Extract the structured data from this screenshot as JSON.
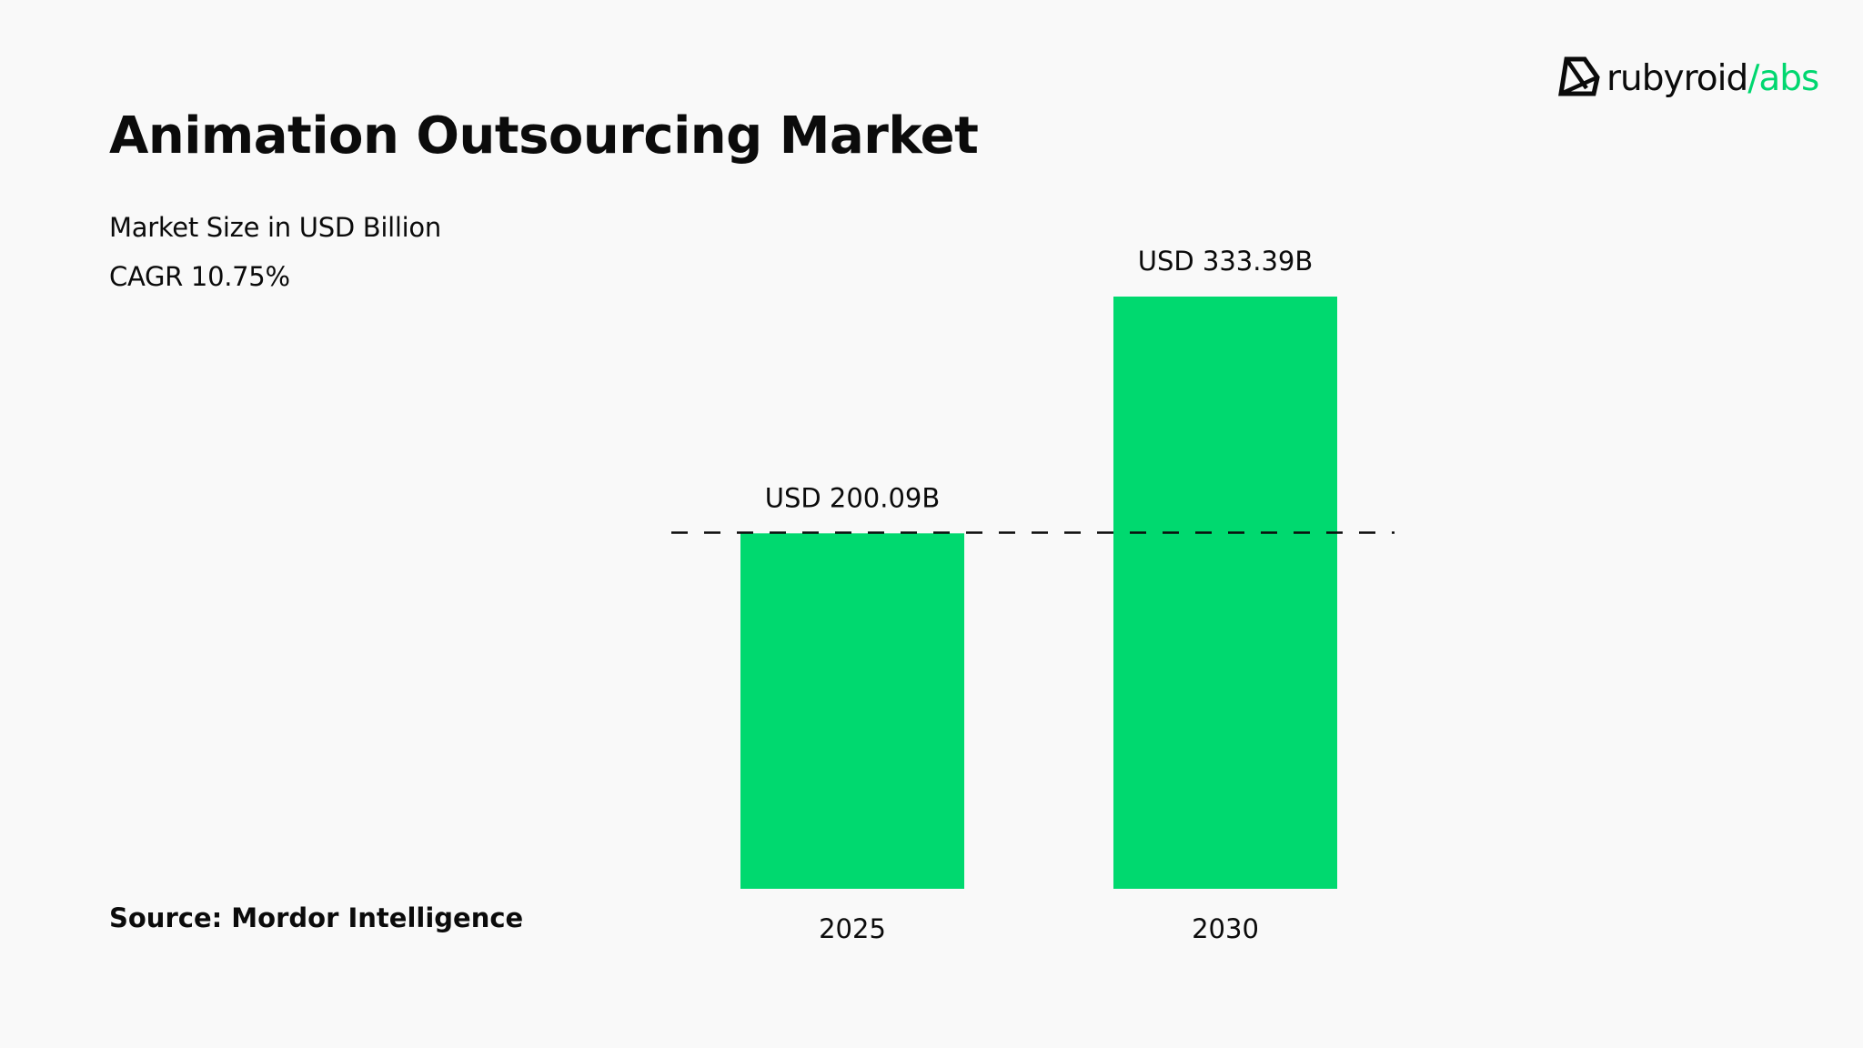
{
  "header": {
    "title": "Animation Outsourcing Market",
    "unit_label": "Market Size in USD Billion",
    "cagr_label": "CAGR 10.75%"
  },
  "logo": {
    "icon": "diamond-gem-icon",
    "word_primary": "rubyroid",
    "word_accent": "/abs",
    "accent_color": "#00d76f"
  },
  "footer": {
    "source": "Source: Mordor Intelligence"
  },
  "colors": {
    "bar": "#00d96f",
    "text": "#0b0b0b",
    "background": "#f9f9f9",
    "reference_line": "#0b0b0b"
  },
  "chart_data": {
    "type": "bar",
    "title": "Animation Outsourcing Market",
    "subtitle": "Market Size in USD Billion",
    "annotation": "CAGR 10.75%",
    "xlabel": "",
    "ylabel": "Market Size in USD Billion",
    "categories": [
      "2025",
      "2030"
    ],
    "values": [
      200.09,
      333.39
    ],
    "data_labels": [
      "USD 200.09B",
      "USD 333.39B"
    ],
    "ylim": [
      0,
      333.39
    ],
    "grid": false,
    "legend": "none",
    "reference_line": {
      "value": 200.09,
      "style": "dashed"
    },
    "source": "Source: Mordor Intelligence"
  }
}
